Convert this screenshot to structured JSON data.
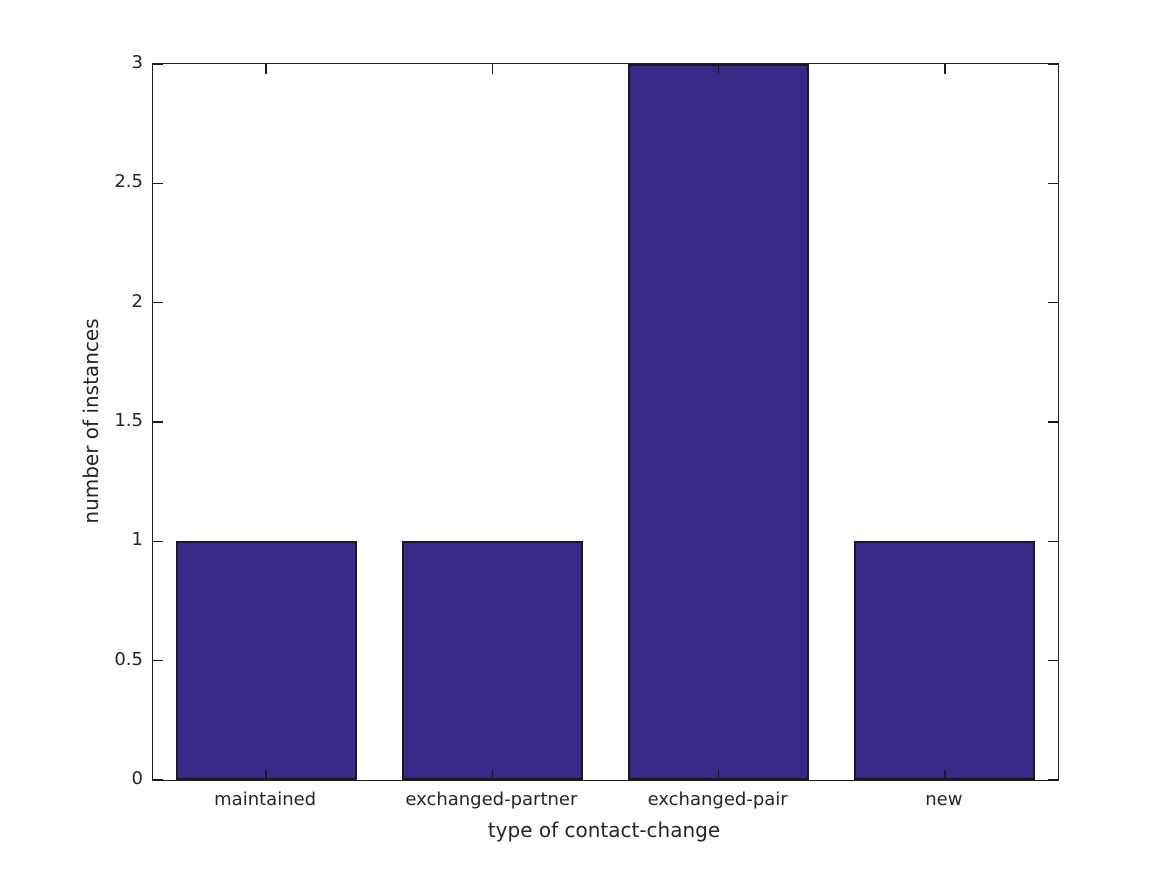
{
  "figure": {
    "background": "#ffffff"
  },
  "chart_data": {
    "type": "bar",
    "title": "",
    "xlabel": "type of contact-change",
    "ylabel": "number of instances",
    "categories": [
      "maintained",
      "exchanged-partner",
      "exchanged-pair",
      "new"
    ],
    "values": [
      1,
      1,
      3,
      1
    ],
    "ylim": [
      0,
      3
    ],
    "yticks": [
      0,
      0.5,
      1,
      1.5,
      2,
      2.5,
      3
    ],
    "ytick_labels": [
      "0",
      "0.5",
      "1",
      "1.5",
      "2",
      "2.5",
      "3"
    ],
    "bar_width_fraction": 0.8,
    "bar_color": "#352a87",
    "bar_edge_color": "#1a1a1a",
    "axis_color": "#1a1a1a",
    "text_color": "#262626",
    "background_color": "#ffffff",
    "grid": false,
    "legend": "none",
    "tick_direction": "in",
    "box": true
  }
}
